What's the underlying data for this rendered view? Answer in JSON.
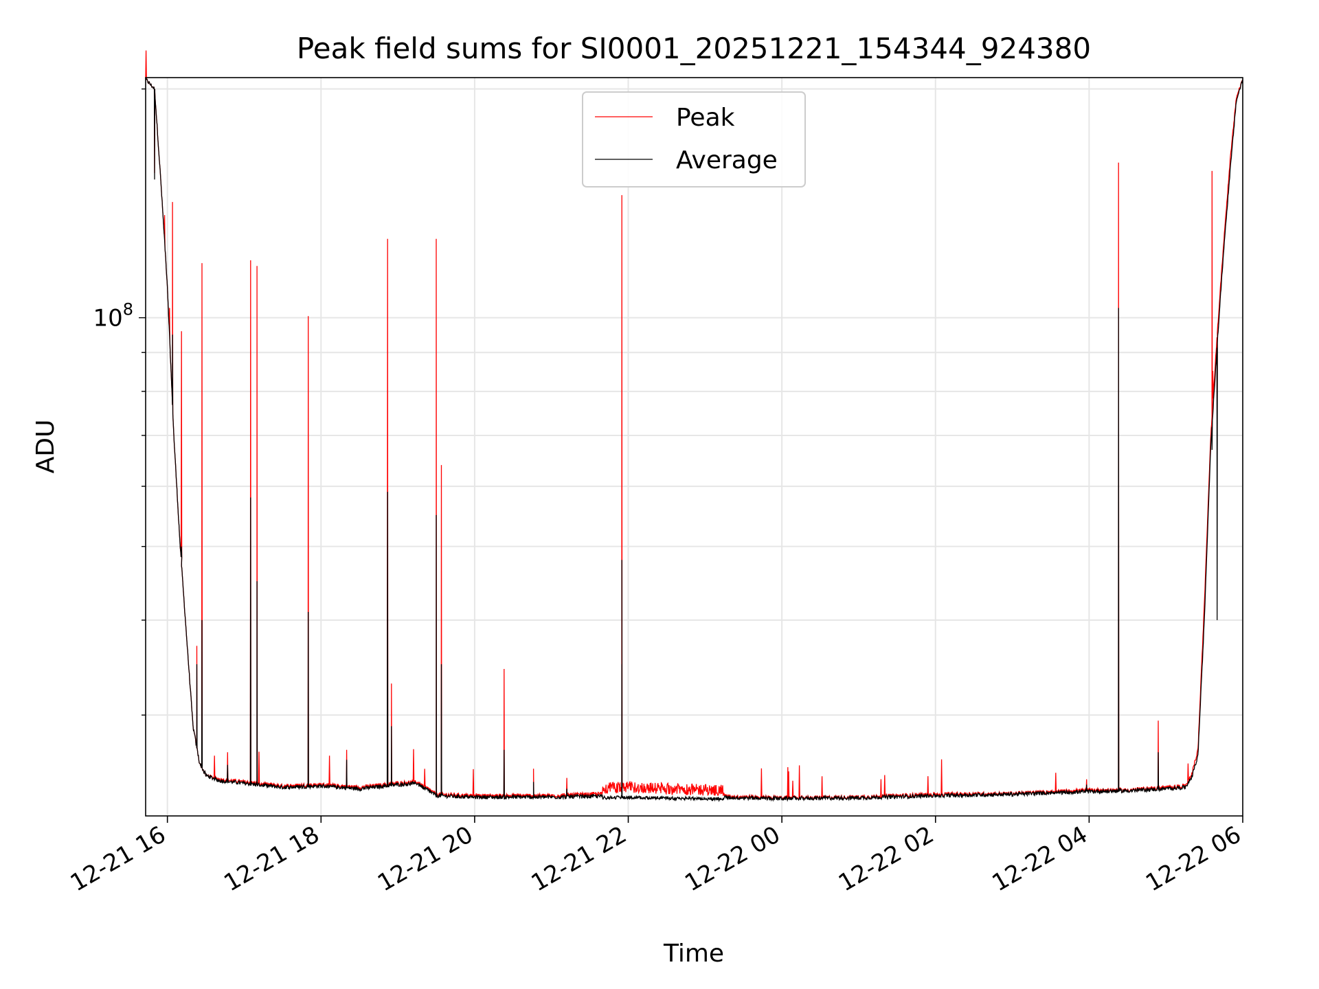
{
  "chart_data": {
    "type": "line",
    "title": "Peak field sums for SI0001_20251221_154344_924380",
    "xlabel": "Time",
    "ylabel": "ADU",
    "yscale": "log",
    "ylim": [
      22100000,
      207000000
    ],
    "xlim": [
      "2025-12-21 15:43",
      "2025-12-22 06:00"
    ],
    "x_ticks": [
      "12-21 16",
      "12-21 18",
      "12-21 20",
      "12-21 22",
      "12-22 00",
      "12-22 02",
      "12-22 04",
      "12-22 06"
    ],
    "y_ticks": [
      "10^8"
    ],
    "grid": true,
    "legend_position": "top-center",
    "series": [
      {
        "name": "Peak",
        "color": "#ff0000"
      },
      {
        "name": "Average",
        "color": "#000000"
      }
    ],
    "baseline": {
      "x": [
        "2025-12-21 15:43",
        "2025-12-21 15:50",
        "2025-12-21 15:55",
        "2025-12-21 16:00",
        "2025-12-21 16:05",
        "2025-12-21 16:10",
        "2025-12-21 16:15",
        "2025-12-21 16:20",
        "2025-12-21 16:25",
        "2025-12-21 16:30",
        "2025-12-21 16:40",
        "2025-12-21 17:00",
        "2025-12-21 17:30",
        "2025-12-21 18:00",
        "2025-12-21 18:30",
        "2025-12-21 19:00",
        "2025-12-21 19:15",
        "2025-12-21 19:30",
        "2025-12-21 20:00",
        "2025-12-21 21:00",
        "2025-12-21 22:00",
        "2025-12-21 23:00",
        "2025-12-22 00:00",
        "2025-12-22 01:00",
        "2025-12-22 02:00",
        "2025-12-22 03:00",
        "2025-12-22 04:00",
        "2025-12-22 04:30",
        "2025-12-22 05:00",
        "2025-12-22 05:15",
        "2025-12-22 05:20",
        "2025-12-22 05:25",
        "2025-12-22 05:30",
        "2025-12-22 05:35",
        "2025-12-22 05:40",
        "2025-12-22 05:45",
        "2025-12-22 05:50",
        "2025-12-22 05:55",
        "2025-12-22 06:00"
      ],
      "peak": [
        206000000,
        200000000,
        150000000,
        110000000,
        70000000,
        50000000,
        38000000,
        29000000,
        26000000,
        25000000,
        24700000,
        24500000,
        24200000,
        24300000,
        24100000,
        24400000,
        24500000,
        23600000,
        23500000,
        23500000,
        23700000,
        23500000,
        23350000,
        23400000,
        23600000,
        23650000,
        23900000,
        23900000,
        24100000,
        24200000,
        25000000,
        27000000,
        42000000,
        70000000,
        95000000,
        125000000,
        160000000,
        195000000,
        206000000
      ],
      "average": [
        206000000,
        200000000,
        150000000,
        110000000,
        70000000,
        50000000,
        38000000,
        29000000,
        26000000,
        25000000,
        24600000,
        24400000,
        24100000,
        24200000,
        24000000,
        24300000,
        24400000,
        23500000,
        23400000,
        23400000,
        23500000,
        23400000,
        23300000,
        23350000,
        23500000,
        23600000,
        23800000,
        23850000,
        24000000,
        24100000,
        24800000,
        26500000,
        40000000,
        68000000,
        92000000,
        122000000,
        155000000,
        193000000,
        206000000
      ]
    },
    "spikes": [
      {
        "x": "2025-12-21 15:50",
        "peak": 155000000,
        "average": 152000000
      },
      {
        "x": "2025-12-21 16:04",
        "peak": 142000000,
        "average": 95000000
      },
      {
        "x": "2025-12-21 16:11",
        "peak": 96000000,
        "average": 50000000
      },
      {
        "x": "2025-12-21 16:23",
        "peak": 37000000,
        "average": 35000000
      },
      {
        "x": "2025-12-21 16:27",
        "peak": 118000000,
        "average": 40000000
      },
      {
        "x": "2025-12-21 16:47",
        "peak": 26800000,
        "average": 25800000
      },
      {
        "x": "2025-12-21 17:05",
        "peak": 119000000,
        "average": 58000000
      },
      {
        "x": "2025-12-21 17:10",
        "peak": 117000000,
        "average": 45000000
      },
      {
        "x": "2025-12-21 17:50",
        "peak": 100500000,
        "average": 41000000
      },
      {
        "x": "2025-12-21 18:20",
        "peak": 27000000,
        "average": 26200000
      },
      {
        "x": "2025-12-21 18:52",
        "peak": 127000000,
        "average": 59000000
      },
      {
        "x": "2025-12-21 18:55",
        "peak": 33000000,
        "average": 29000000
      },
      {
        "x": "2025-12-21 19:30",
        "peak": 127000000,
        "average": 55000000
      },
      {
        "x": "2025-12-21 19:34",
        "peak": 64000000,
        "average": 35000000
      },
      {
        "x": "2025-12-21 20:23",
        "peak": 34500000,
        "average": 27000000
      },
      {
        "x": "2025-12-21 20:46",
        "peak": 25500000,
        "average": 24500000
      },
      {
        "x": "2025-12-21 21:12",
        "peak": 24800000,
        "average": 24000000
      },
      {
        "x": "2025-12-21 21:55",
        "peak": 145000000,
        "average": 35000000
      },
      {
        "x": "2025-12-21 21:55",
        "peak": 58000000,
        "average": 48000000
      },
      {
        "x": "2025-12-22 03:58",
        "peak": 24700000,
        "average": 24300000
      },
      {
        "x": "2025-12-22 04:23",
        "peak": 160000000,
        "average": 103000000
      },
      {
        "x": "2025-12-22 04:23",
        "peak": 94000000,
        "average": 57000000
      },
      {
        "x": "2025-12-22 04:54",
        "peak": 29500000,
        "average": 26800000
      },
      {
        "x": "2025-12-22 05:36",
        "peak": 156000000,
        "average": 67000000
      },
      {
        "x": "2025-12-22 05:40",
        "peak": 70000000,
        "average": 40000000
      }
    ]
  }
}
